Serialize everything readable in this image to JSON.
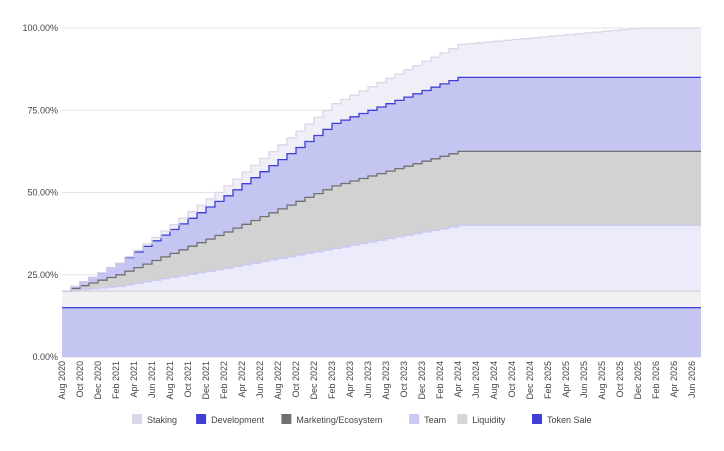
{
  "chart_data": {
    "type": "area",
    "stacked": true,
    "title": "",
    "xlabel": "",
    "ylabel": "",
    "ylim": [
      0,
      100
    ],
    "y_ticks": [
      "0.00%",
      "25.00%",
      "50.00%",
      "75.00%",
      "100.00%"
    ],
    "x_range": [
      "2020-08",
      "2026-07"
    ],
    "x_tick_labels": [
      "Aug 2020",
      "Oct 2020",
      "Dec 2020",
      "Feb 2021",
      "Apr 2021",
      "Jun 2021",
      "Aug 2021",
      "Oct 2021",
      "Dec 2021",
      "Feb 2022",
      "Apr 2022",
      "Jun 2022",
      "Aug 2022",
      "Oct 2022",
      "Dec 2022",
      "Feb 2023",
      "Apr 2023",
      "Jun 2023",
      "Aug 2023",
      "Oct 2023",
      "Dec 2023",
      "Feb 2024",
      "Apr 2024",
      "Jun 2024",
      "Aug 2024",
      "Oct 2024",
      "Dec 2024",
      "Feb 2025",
      "Apr 2025",
      "Jun 2025",
      "Aug 2025",
      "Oct 2025",
      "Dec 2025",
      "Feb 2026",
      "Apr 2026",
      "Jun 2026"
    ],
    "legend_position": "bottom",
    "series": [
      {
        "name": "Token Sale",
        "color": "#3f3fd8",
        "fill": "#c5c5f2",
        "points": [
          [
            "2020-08",
            15
          ],
          [
            "2026-07",
            15
          ]
        ]
      },
      {
        "name": "Liquidity",
        "color": "#d6d6d6",
        "fill": "#f1f1f4",
        "points": [
          [
            "2020-08",
            5
          ],
          [
            "2026-07",
            5
          ]
        ]
      },
      {
        "name": "Team",
        "color": "#c9c9f4",
        "fill": "#ebebfb",
        "points": [
          [
            "2020-08",
            0
          ],
          [
            "2021-02",
            1.5
          ],
          [
            "2022-02",
            7
          ],
          [
            "2023-02",
            13
          ],
          [
            "2024-04",
            20
          ],
          [
            "2026-07",
            20
          ]
        ]
      },
      {
        "name": "Marketing/Ecosystem",
        "color": "#707070",
        "fill": "#d2d2d2",
        "points": [
          [
            "2020-08",
            0
          ],
          [
            "2021-02",
            3.5
          ],
          [
            "2022-02",
            11
          ],
          [
            "2023-02",
            19
          ],
          [
            "2024-04",
            22.5
          ],
          [
            "2026-07",
            22.5
          ]
        ]
      },
      {
        "name": "Development",
        "color": "#3f3fd8",
        "fill": "#c5c5f2",
        "points": [
          [
            "2020-08",
            0
          ],
          [
            "2021-02",
            3.5
          ],
          [
            "2022-02",
            11
          ],
          [
            "2023-02",
            19
          ],
          [
            "2024-04",
            22.5
          ],
          [
            "2026-07",
            22.5
          ]
        ]
      },
      {
        "name": "Staking",
        "color": "#dcd6ea",
        "fill": "#f0eef6",
        "points": [
          [
            "2020-08",
            0
          ],
          [
            "2021-02",
            0
          ],
          [
            "2022-02",
            3
          ],
          [
            "2023-02",
            6
          ],
          [
            "2024-04",
            10
          ],
          [
            "2025-12",
            15
          ],
          [
            "2026-07",
            15
          ]
        ]
      }
    ],
    "legend": [
      {
        "name": "Staking",
        "color": "#dcd6ea"
      },
      {
        "name": "Development",
        "color": "#3f3fd8"
      },
      {
        "name": "Marketing/Ecosystem",
        "color": "#707070"
      },
      {
        "name": "Team",
        "color": "#c9c9f4"
      },
      {
        "name": "Liquidity",
        "color": "#d6d6d6"
      },
      {
        "name": "Token Sale",
        "color": "#3f3fd8"
      }
    ]
  }
}
